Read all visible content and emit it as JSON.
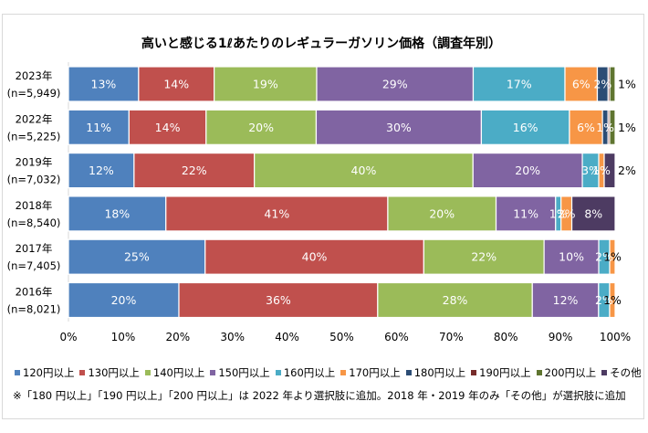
{
  "chart_data": {
    "type": "bar",
    "orientation": "horizontal",
    "stacked": true,
    "title": "高いと感じる1ℓあたりのレギュラーガソリン価格（調査年別）",
    "xlabel": "",
    "ylabel": "",
    "xlim": [
      0,
      100
    ],
    "x_ticks": [
      "0%",
      "10%",
      "20%",
      "30%",
      "40%",
      "50%",
      "60%",
      "70%",
      "80%",
      "90%",
      "100%"
    ],
    "grid": false,
    "legend_position": "bottom",
    "categories": [
      {
        "year": "2023年",
        "n": "(n=5,949)"
      },
      {
        "year": "2022年",
        "n": "(n=5,225)"
      },
      {
        "year": "2019年",
        "n": "(n=7,032)"
      },
      {
        "year": "2018年",
        "n": "(n=8,540)"
      },
      {
        "year": "2017年",
        "n": "(n=7,405)"
      },
      {
        "year": "2016年",
        "n": "(n=8,021)"
      }
    ],
    "series": [
      {
        "name": "120円以上",
        "color": "#4F81BD",
        "values": [
          13,
          11,
          12,
          18,
          25,
          20
        ],
        "labels": [
          "13%",
          "11%",
          "12%",
          "18%",
          "25%",
          "20%"
        ]
      },
      {
        "name": "130円以上",
        "color": "#C0504D",
        "values": [
          14,
          14,
          22,
          41,
          40,
          36
        ],
        "labels": [
          "14%",
          "14%",
          "22%",
          "41%",
          "40%",
          "36%"
        ]
      },
      {
        "name": "140円以上",
        "color": "#9BBB59",
        "values": [
          19,
          20,
          40,
          20,
          22,
          28
        ],
        "labels": [
          "19%",
          "20%",
          "40%",
          "20%",
          "22%",
          "28%"
        ]
      },
      {
        "name": "150円以上",
        "color": "#8064A2",
        "values": [
          29,
          30,
          20,
          11,
          10,
          12
        ],
        "labels": [
          "29%",
          "30%",
          "20%",
          "11%",
          "10%",
          "12%"
        ]
      },
      {
        "name": "160円以上",
        "color": "#4BACC6",
        "values": [
          17,
          16,
          3,
          1,
          2,
          2
        ],
        "labels": [
          "17%",
          "16%",
          "3%",
          "1%",
          "2%",
          "2%"
        ]
      },
      {
        "name": "170円以上",
        "color": "#F79646",
        "values": [
          6,
          6,
          1,
          2,
          1,
          1
        ],
        "labels": [
          "6%",
          "6%",
          "1%",
          "2%",
          "1%",
          "1%"
        ]
      },
      {
        "name": "180円以上",
        "color": "#2C4D75",
        "values": [
          2,
          1,
          null,
          null,
          null,
          null
        ],
        "labels": [
          "2%",
          "1%",
          null,
          null,
          null,
          null
        ]
      },
      {
        "name": "190円以上",
        "color": "#772C2A",
        "values": [
          0.3,
          0.3,
          null,
          null,
          null,
          null
        ],
        "labels": [
          null,
          null,
          null,
          null,
          null,
          null
        ]
      },
      {
        "name": "200円以上",
        "color": "#5F7530",
        "values": [
          1,
          1,
          null,
          null,
          null,
          null
        ],
        "labels": [
          "1%",
          "1%",
          null,
          null,
          null,
          null
        ]
      },
      {
        "name": "その他",
        "color": "#4D3B62",
        "values": [
          null,
          null,
          2,
          8,
          null,
          null
        ],
        "labels": [
          null,
          null,
          "2%",
          "8%",
          null,
          null
        ]
      }
    ],
    "label_overrides": [
      {
        "category": 0,
        "series": 8,
        "tone": "dark",
        "placement": "outside"
      },
      {
        "category": 1,
        "series": 8,
        "tone": "dark",
        "placement": "outside"
      },
      {
        "category": 2,
        "series": 9,
        "tone": "dark",
        "placement": "outside"
      },
      {
        "category": 4,
        "series": 5,
        "tone": "dark",
        "placement": "inside"
      },
      {
        "category": 5,
        "series": 5,
        "tone": "dark",
        "placement": "inside"
      }
    ],
    "label_colors": {
      "light": "#ffffff",
      "dark": "#000000"
    },
    "footnote": "※「180 円以上」「190 円以上」「200 円以上」は 2022 年より選択肢に追加。2018 年・2019 年のみ「その他」が選択肢に追加"
  }
}
